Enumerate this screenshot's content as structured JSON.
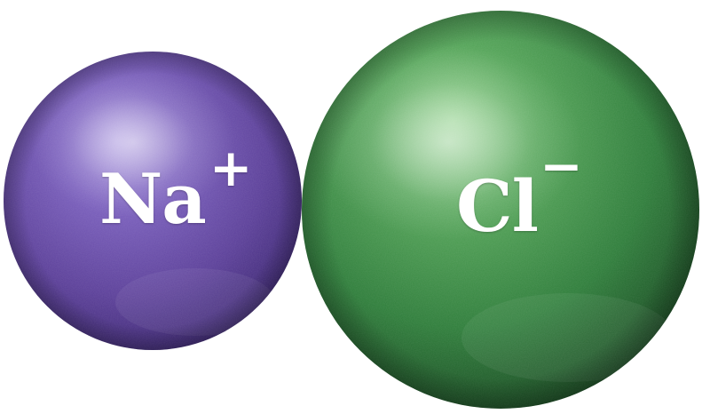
{
  "ions": [
    {
      "id": "sodium",
      "symbol": "Na",
      "charge": "+",
      "color": "#5b3f99"
    },
    {
      "id": "chloride",
      "symbol": "Cl",
      "charge": "−",
      "color": "#2e7d3a"
    }
  ],
  "colors": {
    "sodium_light": "#9a84d6",
    "sodium_dark": "#3a2470",
    "chloride_light": "#7fc47a",
    "chloride_dark": "#1b5224",
    "label": "#ffffff",
    "background": "#ffffff"
  }
}
